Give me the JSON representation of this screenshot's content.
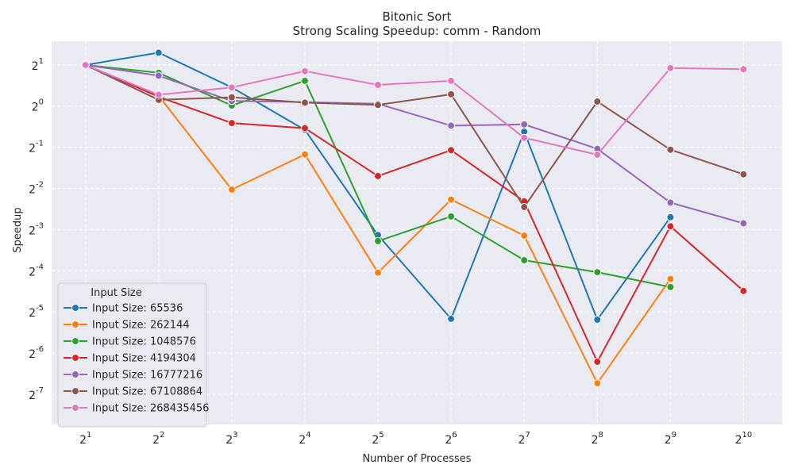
{
  "chart_data": {
    "type": "line",
    "title": "Bitonic Sort",
    "subtitle": "Strong Scaling Speedup: comm - Random",
    "xlabel": "Number of Processes",
    "ylabel": "Speedup",
    "x_scale": "log2",
    "y_scale": "log2",
    "x_tick_exponents": [
      1,
      2,
      3,
      4,
      5,
      6,
      7,
      8,
      9,
      10
    ],
    "y_tick_exponents": [
      1,
      0,
      -1,
      -2,
      -3,
      -4,
      -5,
      -6,
      -7
    ],
    "tick_base": "2",
    "xlim": [
      1.45,
      1476
    ],
    "ylim": [
      0.0047,
      2.98
    ],
    "grid": true,
    "legend": {
      "title": "Input Size",
      "placement": "lower-left"
    },
    "x": [
      2,
      4,
      8,
      16,
      32,
      64,
      128,
      256,
      512,
      1024
    ],
    "series": [
      {
        "name": "Input Size: 65536",
        "color": "#1f77b4",
        "values": [
          2.0,
          2.46,
          1.37,
          0.67,
          0.114,
          0.0278,
          0.65,
          0.0274,
          0.154,
          null
        ]
      },
      {
        "name": "Input Size: 262144",
        "color": "#ff7f0e",
        "values": [
          2.0,
          1.19,
          0.245,
          0.443,
          0.0605,
          0.207,
          0.113,
          0.0094,
          0.0545,
          null
        ]
      },
      {
        "name": "Input Size: 1048576",
        "color": "#2ca02c",
        "values": [
          2.0,
          1.75,
          1.01,
          1.53,
          0.103,
          0.156,
          0.0746,
          0.061,
          0.0475,
          null
        ]
      },
      {
        "name": "Input Size: 4194304",
        "color": "#d62728",
        "values": [
          2.0,
          1.17,
          0.752,
          0.689,
          0.308,
          0.476,
          0.201,
          0.0135,
          0.132,
          0.0445
        ]
      },
      {
        "name": "Input Size: 16777216",
        "color": "#9467bd",
        "values": [
          2.0,
          1.67,
          1.09,
          1.07,
          1.04,
          0.719,
          0.735,
          0.487,
          0.197,
          0.139
        ]
      },
      {
        "name": "Input Size: 67108864",
        "color": "#8c564b",
        "values": [
          2.0,
          1.11,
          1.16,
          1.06,
          1.02,
          1.22,
          0.183,
          1.08,
          0.48,
          0.317
        ]
      },
      {
        "name": "Input Size: 268435456",
        "color": "#e377c2",
        "values": [
          2.0,
          1.21,
          1.37,
          1.8,
          1.43,
          1.53,
          0.586,
          0.441,
          1.9,
          1.86
        ]
      }
    ]
  }
}
